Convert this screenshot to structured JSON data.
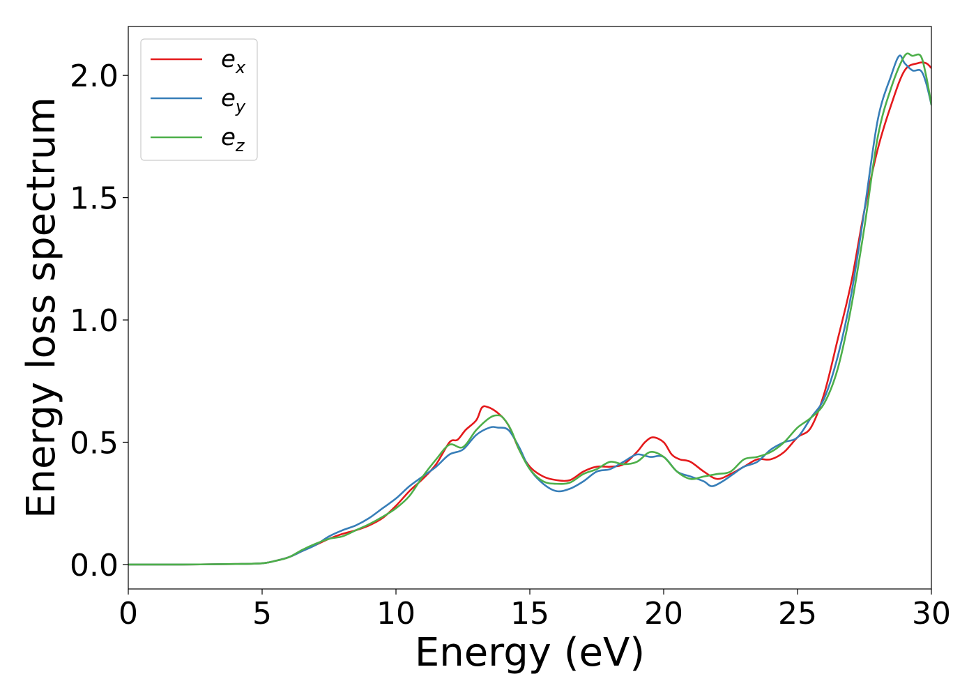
{
  "chart_data": {
    "type": "line",
    "title": "",
    "xlabel": "Energy (eV)",
    "ylabel": "Energy loss spectrum",
    "xlim": [
      0,
      30
    ],
    "ylim": [
      -0.1,
      2.2
    ],
    "xticks": [
      0,
      5,
      10,
      15,
      20,
      25,
      30
    ],
    "yticks": [
      0.0,
      0.5,
      1.0,
      1.5,
      2.0
    ],
    "xtick_labels": [
      "0",
      "5",
      "10",
      "15",
      "20",
      "25",
      "30"
    ],
    "ytick_labels": [
      "0.0",
      "0.5",
      "1.0",
      "1.5",
      "2.0"
    ],
    "grid": false,
    "legend_position": "top-left",
    "series": [
      {
        "name": "e_x",
        "label_base": "e",
        "label_sub": "x",
        "color": "#e41a1c",
        "x": [
          0,
          2,
          4,
          5,
          5.5,
          6,
          6.5,
          7,
          7.5,
          8,
          8.5,
          9,
          9.5,
          10,
          10.5,
          11,
          11.5,
          12,
          12.3,
          12.6,
          13,
          13.2,
          13.4,
          13.8,
          14.2,
          14.6,
          15,
          15.5,
          16,
          16.5,
          17,
          17.5,
          18,
          18.5,
          19,
          19.3,
          19.6,
          20,
          20.3,
          20.6,
          21,
          21.5,
          22,
          22.5,
          23,
          23.5,
          24,
          24.5,
          25,
          25.5,
          26,
          26.5,
          27,
          27.5,
          28,
          28.5,
          29,
          29.5,
          29.8,
          30
        ],
        "y": [
          0,
          0,
          0.002,
          0.005,
          0.015,
          0.03,
          0.055,
          0.08,
          0.105,
          0.125,
          0.14,
          0.16,
          0.19,
          0.24,
          0.3,
          0.35,
          0.41,
          0.5,
          0.51,
          0.55,
          0.59,
          0.64,
          0.645,
          0.62,
          0.57,
          0.47,
          0.4,
          0.36,
          0.345,
          0.345,
          0.38,
          0.4,
          0.4,
          0.41,
          0.46,
          0.5,
          0.52,
          0.5,
          0.45,
          0.43,
          0.42,
          0.38,
          0.35,
          0.37,
          0.4,
          0.43,
          0.43,
          0.46,
          0.52,
          0.56,
          0.7,
          0.92,
          1.15,
          1.45,
          1.7,
          1.88,
          2.02,
          2.05,
          2.05,
          2.03
        ]
      },
      {
        "name": "e_y",
        "label_base": "e",
        "label_sub": "y",
        "color": "#377eb8",
        "x": [
          0,
          2,
          4,
          5,
          5.5,
          6,
          6.5,
          7,
          7.5,
          8,
          8.5,
          9,
          9.5,
          10,
          10.5,
          11,
          11.5,
          12,
          12.5,
          13,
          13.5,
          13.8,
          14.2,
          14.6,
          15,
          15.5,
          16,
          16.5,
          17,
          17.5,
          18,
          18.5,
          19,
          19.5,
          20,
          20.5,
          21,
          21.5,
          21.8,
          22.2,
          22.6,
          23,
          23.5,
          24,
          24.5,
          25,
          25.5,
          26,
          26.5,
          27,
          27.5,
          28,
          28.5,
          28.8,
          29,
          29.3,
          29.6,
          29.8,
          30
        ],
        "y": [
          0,
          0,
          0.002,
          0.005,
          0.015,
          0.03,
          0.055,
          0.08,
          0.115,
          0.14,
          0.16,
          0.19,
          0.23,
          0.27,
          0.32,
          0.36,
          0.4,
          0.45,
          0.47,
          0.53,
          0.56,
          0.56,
          0.55,
          0.48,
          0.39,
          0.33,
          0.3,
          0.31,
          0.34,
          0.38,
          0.39,
          0.42,
          0.45,
          0.44,
          0.44,
          0.38,
          0.36,
          0.34,
          0.32,
          0.34,
          0.37,
          0.4,
          0.42,
          0.47,
          0.5,
          0.52,
          0.6,
          0.68,
          0.85,
          1.1,
          1.45,
          1.82,
          2.0,
          2.08,
          2.05,
          2.02,
          2.02,
          1.97,
          1.88
        ]
      },
      {
        "name": "e_z",
        "label_base": "e",
        "label_sub": "z",
        "color": "#4daf4a",
        "x": [
          0,
          2,
          4,
          5,
          5.5,
          6,
          6.5,
          7,
          7.5,
          8,
          8.5,
          9,
          9.5,
          10,
          10.5,
          11,
          11.5,
          12,
          12.5,
          13,
          13.5,
          13.8,
          14,
          14.3,
          14.6,
          15,
          15.5,
          16,
          16.5,
          17,
          17.5,
          18,
          18.5,
          19,
          19.5,
          20,
          20.5,
          21,
          21.5,
          22,
          22.5,
          23,
          23.5,
          24,
          24.5,
          25,
          25.5,
          26,
          26.5,
          27,
          27.5,
          28,
          28.5,
          29,
          29.3,
          29.6,
          29.8,
          30
        ],
        "y": [
          0,
          0,
          0.002,
          0.005,
          0.015,
          0.03,
          0.06,
          0.085,
          0.105,
          0.115,
          0.14,
          0.165,
          0.195,
          0.23,
          0.28,
          0.36,
          0.43,
          0.49,
          0.48,
          0.55,
          0.6,
          0.61,
          0.6,
          0.55,
          0.47,
          0.39,
          0.34,
          0.33,
          0.335,
          0.37,
          0.39,
          0.42,
          0.41,
          0.42,
          0.46,
          0.44,
          0.38,
          0.35,
          0.36,
          0.37,
          0.38,
          0.43,
          0.44,
          0.46,
          0.5,
          0.56,
          0.6,
          0.66,
          0.8,
          1.05,
          1.38,
          1.75,
          1.95,
          2.08,
          2.08,
          2.08,
          2.0,
          1.88
        ]
      }
    ]
  }
}
